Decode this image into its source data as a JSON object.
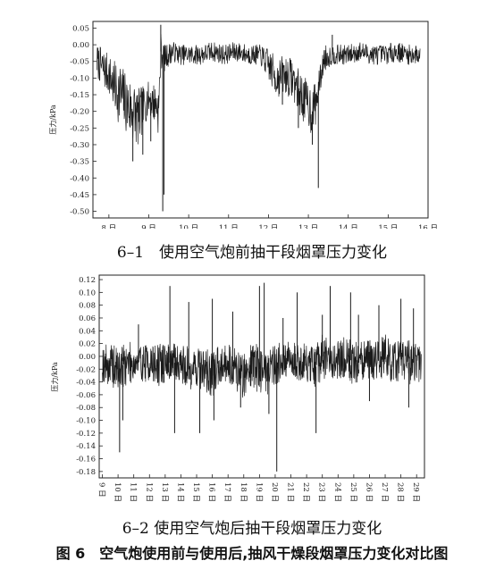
{
  "figure_caption": "图 6　空气炮使用前与使用后,抽风干燥段烟罩压力变化对比图",
  "chart_data": [
    {
      "id": "chart1",
      "type": "line",
      "caption": "6–1　使用空气炮前抽干段烟罩压力变化",
      "ylabel": "压力/kPa",
      "xlabel": "",
      "xlim": [
        7.6,
        16
      ],
      "ylim": [
        -0.52,
        0.07
      ],
      "yticks": [
        "0.05",
        "0.00",
        "-0.05",
        "-0.10",
        "-0.15",
        "-0.20",
        "-0.25",
        "-0.30",
        "-0.35",
        "-0.40",
        "-0.45",
        "-0.50"
      ],
      "ytick_values": [
        0.05,
        0.0,
        -0.05,
        -0.1,
        -0.15,
        -0.2,
        -0.25,
        -0.3,
        -0.35,
        -0.4,
        -0.45,
        -0.5
      ],
      "xticks": [
        "8 日",
        "9 日",
        "10 日",
        "11 日",
        "12 日",
        "13 日",
        "14 日",
        "15 日",
        "16 日"
      ],
      "xtick_values": [
        8,
        9,
        10,
        11,
        12,
        13,
        14,
        15,
        16
      ],
      "grid": false,
      "series": [
        {
          "line_color": "#1a1a1a",
          "x": [
            7.7,
            7.85,
            8.0,
            8.15,
            8.3,
            8.45,
            8.6,
            8.75,
            8.9,
            9.0,
            9.1,
            9.2,
            9.25,
            9.3,
            9.33,
            9.4,
            9.6,
            9.8,
            10.0,
            10.3,
            10.6,
            10.9,
            11.2,
            11.5,
            11.8,
            12.0,
            12.2,
            12.4,
            12.6,
            12.8,
            13.0,
            13.1,
            13.2,
            13.3,
            13.4,
            13.6,
            13.8,
            14.0,
            14.3,
            14.6,
            14.9,
            15.2,
            15.5,
            15.8
          ],
          "center": [
            -0.05,
            -0.07,
            -0.09,
            -0.13,
            -0.15,
            -0.18,
            -0.2,
            -0.22,
            -0.18,
            -0.16,
            -0.17,
            -0.18,
            -0.2,
            -0.02,
            -0.03,
            -0.04,
            -0.02,
            -0.03,
            -0.03,
            -0.03,
            -0.02,
            -0.03,
            -0.02,
            -0.03,
            -0.03,
            -0.06,
            -0.1,
            -0.09,
            -0.1,
            -0.15,
            -0.18,
            -0.2,
            -0.17,
            -0.1,
            -0.04,
            -0.03,
            -0.03,
            -0.03,
            -0.02,
            -0.03,
            -0.03,
            -0.02,
            -0.03,
            -0.03
          ],
          "amplitude": [
            0.05,
            0.06,
            0.06,
            0.08,
            0.1,
            0.09,
            0.1,
            0.09,
            0.06,
            0.05,
            0.06,
            0.06,
            0.08,
            0.06,
            0.04,
            0.04,
            0.03,
            0.03,
            0.03,
            0.03,
            0.03,
            0.03,
            0.03,
            0.03,
            0.03,
            0.05,
            0.06,
            0.06,
            0.06,
            0.07,
            0.07,
            0.08,
            0.06,
            0.04,
            0.04,
            0.03,
            0.03,
            0.03,
            0.03,
            0.03,
            0.03,
            0.03,
            0.03,
            0.03
          ],
          "spikes": [
            [
              8.6,
              -0.35
            ],
            [
              8.85,
              -0.33
            ],
            [
              9.05,
              -0.29
            ],
            [
              9.35,
              -0.5
            ],
            [
              9.3,
              0.06
            ],
            [
              9.38,
              -0.45
            ],
            [
              12.35,
              -0.18
            ],
            [
              12.75,
              -0.25
            ],
            [
              13.25,
              -0.43
            ],
            [
              13.1,
              -0.3
            ],
            [
              13.6,
              0.03
            ]
          ]
        }
      ]
    },
    {
      "id": "chart2",
      "type": "line",
      "caption": "6–2 使用空气炮后抽干段烟罩压力变化",
      "ylabel": "压力/kPa",
      "xlabel": "",
      "xlim": [
        8.8,
        29.5
      ],
      "ylim": [
        -0.19,
        0.127
      ],
      "yticks": [
        "0.12",
        "0.10",
        "0.08",
        "0.06",
        "0.04",
        "0.02",
        "0.00",
        "-0.02",
        "-0.04",
        "-0.06",
        "-0.08",
        "-0.10",
        "-0.12",
        "-0.14",
        "-0.16",
        "-0.18"
      ],
      "ytick_values": [
        0.12,
        0.1,
        0.08,
        0.06,
        0.04,
        0.02,
        0.0,
        -0.02,
        -0.04,
        -0.06,
        -0.08,
        -0.1,
        -0.12,
        -0.14,
        -0.16,
        -0.18
      ],
      "xticks": [
        "9 日",
        "10 日",
        "11 日",
        "12 日",
        "13 日",
        "14 日",
        "15 日",
        "16 日",
        "17 日",
        "18 日",
        "19 日",
        "20 日",
        "21 日",
        "22 日",
        "23 日",
        "24 日",
        "25 日",
        "26 日",
        "27 日",
        "28 日",
        "29 日"
      ],
      "xtick_values": [
        9,
        10,
        11,
        12,
        13,
        14,
        15,
        16,
        17,
        18,
        19,
        20,
        21,
        22,
        23,
        24,
        25,
        26,
        27,
        28,
        29
      ],
      "grid": false,
      "series": [
        {
          "line_color": "#1a1a1a",
          "x": [
            9.0,
            9.5,
            10.0,
            10.5,
            11.0,
            11.5,
            12.0,
            12.5,
            13.0,
            13.5,
            14.0,
            14.5,
            15.0,
            15.5,
            16.0,
            16.5,
            17.0,
            17.5,
            18.0,
            18.5,
            19.0,
            19.5,
            20.0,
            20.5,
            21.0,
            21.5,
            22.0,
            22.5,
            23.0,
            23.5,
            24.0,
            24.5,
            25.0,
            25.5,
            26.0,
            26.5,
            27.0,
            27.5,
            28.0,
            28.5,
            29.0,
            29.3
          ],
          "center": [
            -0.01,
            -0.015,
            -0.02,
            -0.01,
            -0.01,
            -0.01,
            -0.01,
            -0.015,
            -0.01,
            -0.01,
            -0.01,
            -0.02,
            -0.015,
            -0.02,
            -0.03,
            -0.01,
            -0.01,
            -0.02,
            -0.03,
            -0.01,
            -0.02,
            -0.02,
            -0.01,
            -0.01,
            -0.005,
            -0.01,
            -0.01,
            -0.02,
            0.0,
            -0.01,
            -0.005,
            0.0,
            -0.01,
            -0.01,
            -0.005,
            -0.005,
            0.0,
            -0.01,
            -0.005,
            -0.01,
            -0.01,
            -0.01
          ],
          "amplitude": [
            0.03,
            0.035,
            0.035,
            0.035,
            0.03,
            0.03,
            0.03,
            0.035,
            0.03,
            0.03,
            0.03,
            0.035,
            0.035,
            0.035,
            0.035,
            0.03,
            0.03,
            0.035,
            0.04,
            0.035,
            0.04,
            0.04,
            0.035,
            0.03,
            0.03,
            0.03,
            0.03,
            0.035,
            0.035,
            0.035,
            0.03,
            0.035,
            0.035,
            0.035,
            0.03,
            0.035,
            0.035,
            0.035,
            0.03,
            0.035,
            0.03,
            0.03
          ],
          "spikes": [
            [
              10.1,
              -0.15
            ],
            [
              10.3,
              -0.1
            ],
            [
              11.3,
              0.05
            ],
            [
              13.3,
              0.11
            ],
            [
              13.6,
              -0.12
            ],
            [
              14.5,
              0.085
            ],
            [
              15.2,
              -0.12
            ],
            [
              16.0,
              0.09
            ],
            [
              16.1,
              -0.1
            ],
            [
              17.3,
              0.07
            ],
            [
              17.8,
              -0.08
            ],
            [
              19.0,
              0.11
            ],
            [
              19.3,
              0.115
            ],
            [
              19.6,
              -0.09
            ],
            [
              20.1,
              -0.18
            ],
            [
              20.5,
              0.06
            ],
            [
              21.4,
              0.1
            ],
            [
              22.6,
              -0.12
            ],
            [
              23.0,
              0.065
            ],
            [
              23.5,
              0.11
            ],
            [
              24.8,
              0.1
            ],
            [
              25.3,
              0.065
            ],
            [
              26.0,
              -0.07
            ],
            [
              26.6,
              0.08
            ],
            [
              28.0,
              0.09
            ],
            [
              28.5,
              -0.08
            ],
            [
              28.8,
              0.075
            ]
          ]
        }
      ]
    }
  ]
}
